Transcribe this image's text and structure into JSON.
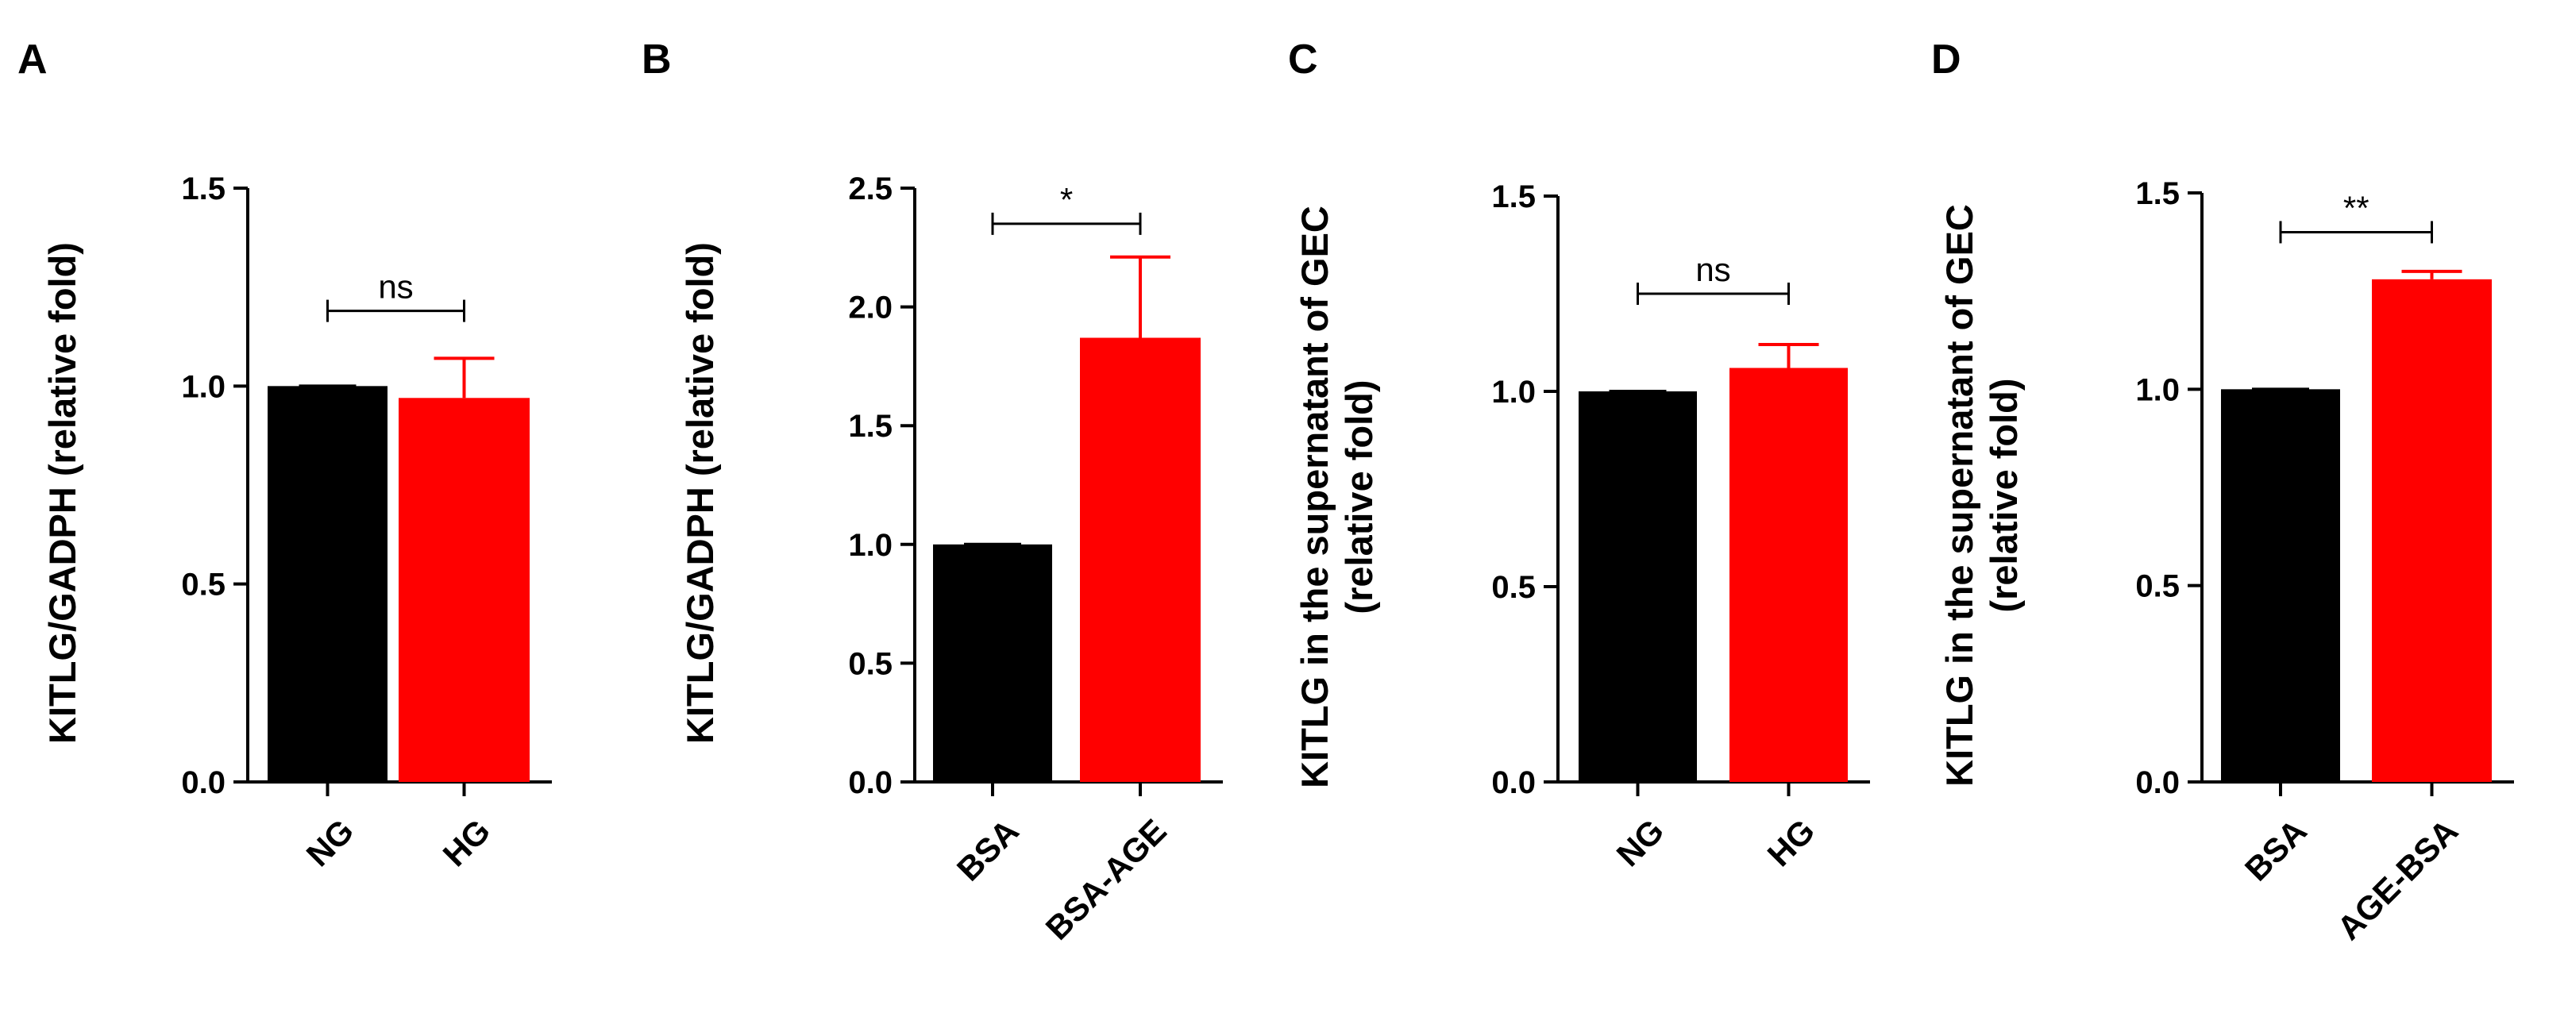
{
  "chart_data": [
    {
      "panel": "A",
      "type": "bar",
      "categories": [
        "NG",
        "HG"
      ],
      "values": [
        1.0,
        0.97
      ],
      "errors": [
        0.0,
        0.1
      ],
      "colors": [
        "#000000",
        "#ff0000"
      ],
      "ylabel_lines": [
        "KITLG/GADPH (relative fold)"
      ],
      "ylim": [
        0,
        1.5
      ],
      "yticks": [
        0.0,
        0.5,
        1.0,
        1.5
      ],
      "ytick_labels": [
        "0.0",
        "0.5",
        "1.0",
        "1.5"
      ],
      "significance": "ns",
      "sig_level": 1.19,
      "xtick_rotated": true
    },
    {
      "panel": "B",
      "type": "bar",
      "categories": [
        "BSA",
        "BSA-AGE"
      ],
      "values": [
        1.0,
        1.87
      ],
      "errors": [
        0.0,
        0.34
      ],
      "colors": [
        "#000000",
        "#ff0000"
      ],
      "ylabel_lines": [
        "KITLG/GADPH (relative fold)"
      ],
      "ylim": [
        0,
        2.5
      ],
      "yticks": [
        0.0,
        0.5,
        1.0,
        1.5,
        2.0,
        2.5
      ],
      "ytick_labels": [
        "0.0",
        "0.5",
        "1.0",
        "1.5",
        "2.0",
        "2.5"
      ],
      "significance": "*",
      "sig_level": 2.35,
      "xtick_rotated": true
    },
    {
      "panel": "C",
      "type": "bar",
      "categories": [
        "NG",
        "HG"
      ],
      "values": [
        1.0,
        1.06
      ],
      "errors": [
        0.0,
        0.06
      ],
      "colors": [
        "#000000",
        "#ff0000"
      ],
      "ylabel_lines": [
        "KITLG in the supernatant of GEC",
        "(relative fold)"
      ],
      "ylim": [
        0,
        1.5
      ],
      "yticks": [
        0.0,
        0.5,
        1.0,
        1.5
      ],
      "ytick_labels": [
        "0.0",
        "0.5",
        "1.0",
        "1.5"
      ],
      "significance": "ns",
      "sig_level": 1.25,
      "xtick_rotated": true
    },
    {
      "panel": "D",
      "type": "bar",
      "categories": [
        "BSA",
        "AGE-BSA"
      ],
      "values": [
        1.0,
        1.28
      ],
      "errors": [
        0.0,
        0.02
      ],
      "colors": [
        "#000000",
        "#ff0000"
      ],
      "ylabel_lines": [
        "KITLG in the supernatant of GEC",
        "(relative fold)"
      ],
      "ylim": [
        0,
        1.5
      ],
      "yticks": [
        0.0,
        0.5,
        1.0,
        1.5
      ],
      "ytick_labels": [
        "0.0",
        "0.5",
        "1.0",
        "1.5"
      ],
      "significance": "**",
      "sig_level": 1.4,
      "xtick_rotated": true
    }
  ]
}
